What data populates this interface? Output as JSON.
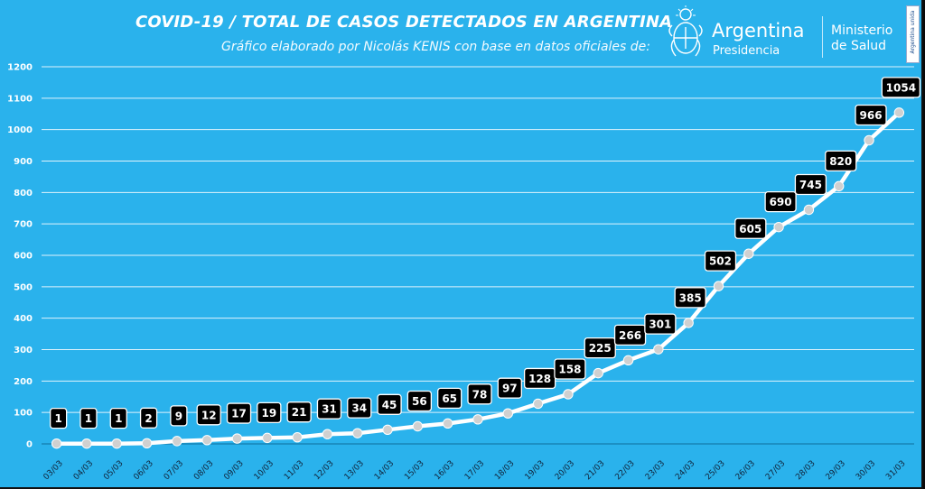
{
  "title": "COVID-19  /  TOTAL DE CASOS DETECTADOS EN ARGENTINA",
  "subtitle": "Gráfico elaborado por Nicolás KENIS con base en datos oficiales de:",
  "logos": {
    "argentina_name": "Argentina",
    "argentina_sub": "Presidencia",
    "ministerio_line1": "Ministerio",
    "ministerio_line2": "de Salud",
    "badge_text": "Argentina unida"
  },
  "colors": {
    "background": "#2ab2ec",
    "line": "#ffffff",
    "marker": "#d0d0d0",
    "label_box": "#000000",
    "label_text": "#ffffff",
    "grid": "#ffffff"
  },
  "chart_data": {
    "type": "line",
    "title": "COVID-19  /  TOTAL DE CASOS DETECTADOS EN ARGENTINA",
    "xlabel": "",
    "ylabel": "",
    "ylim": [
      0,
      1200
    ],
    "yticks": [
      0,
      100,
      200,
      300,
      400,
      500,
      600,
      700,
      800,
      900,
      1000,
      1100,
      1200
    ],
    "grid": true,
    "legend": "none",
    "categories": [
      "03/03",
      "04/03",
      "05/03",
      "06/03",
      "07/03",
      "08/03",
      "09/03",
      "10/03",
      "11/03",
      "12/03",
      "13/03",
      "14/03",
      "15/03",
      "16/03",
      "17/03",
      "18/03",
      "19/03",
      "20/03",
      "21/03",
      "22/03",
      "23/03",
      "24/03",
      "25/03",
      "26/03",
      "27/03",
      "28/03",
      "29/03",
      "30/03",
      "31/03"
    ],
    "series": [
      {
        "values": [
          1,
          1,
          1,
          2,
          9,
          12,
          17,
          19,
          21,
          31,
          34,
          45,
          56,
          65,
          78,
          97,
          128,
          158,
          225,
          266,
          301,
          385,
          502,
          605,
          690,
          745,
          820,
          966,
          1054
        ]
      }
    ]
  }
}
